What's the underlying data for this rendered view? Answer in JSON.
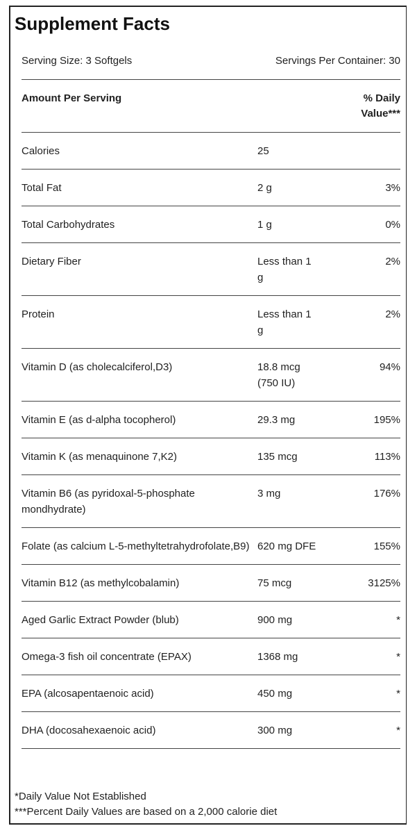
{
  "title": "Supplement Facts",
  "serving_size": "Serving Size: 3 Softgels",
  "servings_per_container": "Servings Per Container: 30",
  "header": {
    "amount": "Amount Per Serving",
    "daily_value": "% Daily Value***"
  },
  "rows": [
    {
      "name": "Calories",
      "amount": "25"
    },
    {
      "name": "Total Fat",
      "amount": "2 g",
      "daily_value": "3%"
    },
    {
      "name": "Total Carbohydrates",
      "amount": "1 g",
      "daily_value": "0%"
    },
    {
      "name": "Dietary Fiber",
      "amount": "Less than 1 g",
      "daily_value": "2%"
    },
    {
      "name": "Protein",
      "amount": "Less than 1 g",
      "daily_value": "2%"
    },
    {
      "name": "Vitamin D (as cholecalciferol,D3)",
      "amount": "18.8 mcg (750 IU)",
      "daily_value": "94%"
    },
    {
      "name": "Vitamin E (as d-alpha tocopherol)",
      "amount": "29.3 mg",
      "daily_value": "195%"
    },
    {
      "name": "Vitamin K (as menaquinone 7,K2)",
      "amount": "135 mcg",
      "daily_value": "113%"
    },
    {
      "name": "Vitamin B6 (as pyridoxal-5-phosphate mondhydrate)",
      "amount": "3 mg",
      "daily_value": "176%"
    },
    {
      "name": "Folate (as calcium L-5-methyltetrahydrofolate,B9)",
      "amount": "620 mg DFE",
      "daily_value": "155%"
    },
    {
      "name": "Vitamin B12 (as methylcobalamin)",
      "amount": "75 mcg",
      "daily_value": "3125%"
    },
    {
      "name": "Aged Garlic Extract Powder (blub)",
      "amount": "900 mg",
      "daily_value": "*"
    },
    {
      "name": "Omega-3 fish oil concentrate (EPAX)",
      "amount": "1368 mg",
      "daily_value": "*"
    },
    {
      "name": "EPA (alcosapentaenoic acid)",
      "amount": "450 mg",
      "daily_value": "*"
    },
    {
      "name": "DHA (docosahexaenoic acid)",
      "amount": "300 mg",
      "daily_value": "*"
    }
  ],
  "footnotes": [
    "*Daily Value Not Established",
    "***Percent Daily Values are based on a 2,000 calorie diet"
  ]
}
